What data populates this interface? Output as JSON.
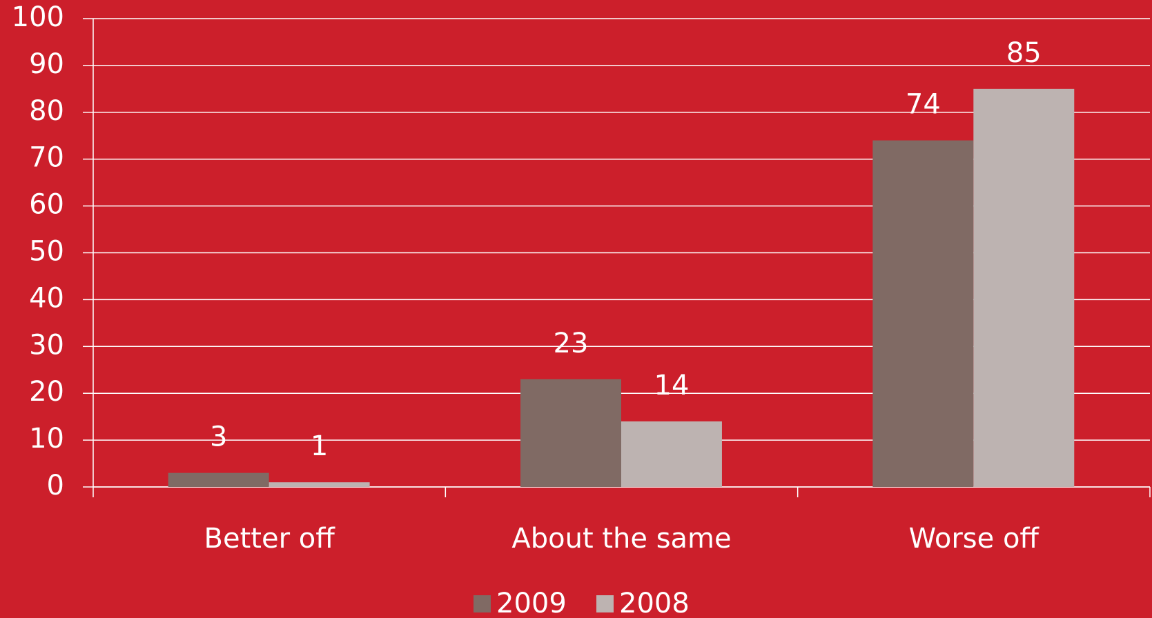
{
  "chart_data": {
    "type": "bar",
    "categories": [
      "Better off",
      "About the same",
      "Worse off"
    ],
    "series": [
      {
        "name": "2009",
        "color": "#806a64",
        "values": [
          3,
          23,
          74
        ]
      },
      {
        "name": "2008",
        "color": "#bdb3b1",
        "values": [
          1,
          14,
          85
        ]
      }
    ],
    "ylim": [
      0,
      100
    ],
    "yticks": [
      0,
      10,
      20,
      30,
      40,
      50,
      60,
      70,
      80,
      90,
      100
    ],
    "grid": true,
    "legend": "bottom"
  }
}
